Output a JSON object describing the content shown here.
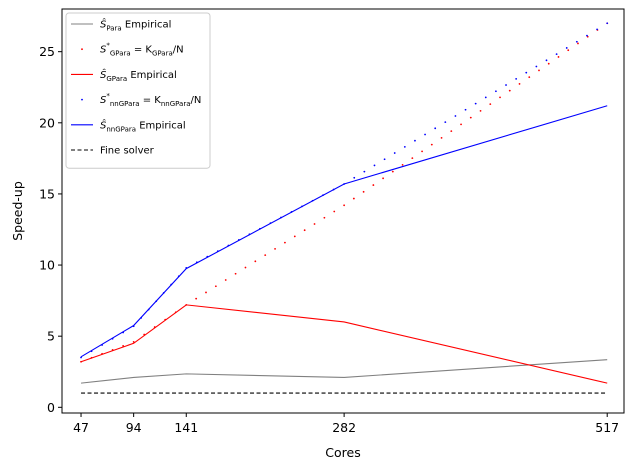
{
  "chart_data": {
    "type": "line",
    "title": "",
    "xlabel": "Cores",
    "ylabel": "Speed-up",
    "x_ticks": [
      47,
      94,
      141,
      282,
      517
    ],
    "y_ticks": [
      0,
      5,
      10,
      15,
      20,
      25
    ],
    "xlim": [
      30,
      532
    ],
    "ylim": [
      -0.4,
      28.0
    ],
    "grid": false,
    "legend_position": "top-left",
    "series": [
      {
        "name": "Ŝ_Para Empirical",
        "legend": {
          "base": "Ŝ",
          "sub": "Para",
          "rest": " Empirical"
        },
        "style": "solid",
        "color": "#808080",
        "x": [
          47,
          94,
          141,
          282,
          517
        ],
        "values": [
          1.7,
          2.1,
          2.35,
          2.1,
          3.35
        ]
      },
      {
        "name": "S*_GPara = K_GPara/N",
        "legend": {
          "base": "S",
          "sup": "*",
          "sub": "GPara",
          "rest": " = K",
          "sub2": "GPara",
          "rest2": "/N"
        },
        "style": "dotted",
        "color": "#ff0000",
        "x": [
          47,
          94,
          141,
          282,
          517
        ],
        "values": [
          3.2,
          4.6,
          7.2,
          14.2,
          27.0
        ]
      },
      {
        "name": "Ŝ_GPara Empirical",
        "legend": {
          "base": "Ŝ",
          "sub": "GPara",
          "rest": " Empirical"
        },
        "style": "solid",
        "color": "#ff0000",
        "x": [
          47,
          94,
          141,
          282,
          517
        ],
        "values": [
          3.2,
          4.5,
          7.2,
          6.0,
          1.7
        ]
      },
      {
        "name": "S*_nnGPara = K_nnGPara/N",
        "legend": {
          "base": "S",
          "sup": "*",
          "sub": "nnGPara",
          "rest": " = K",
          "sub2": "nnGPara",
          "rest2": "/N"
        },
        "style": "dotted",
        "color": "#0000ff",
        "x": [
          47,
          94,
          141,
          282,
          517
        ],
        "values": [
          3.5,
          5.7,
          9.8,
          15.7,
          27.0
        ]
      },
      {
        "name": "Ŝ_nnGPara Empirical",
        "legend": {
          "base": "Ŝ",
          "sub": "nnGPara",
          "rest": " Empirical"
        },
        "style": "solid",
        "color": "#0000ff",
        "x": [
          47,
          94,
          141,
          282,
          517
        ],
        "values": [
          3.55,
          5.75,
          9.75,
          15.7,
          21.2
        ]
      },
      {
        "name": "Fine solver",
        "legend": {
          "base": "Fine solver"
        },
        "style": "dashed",
        "color": "#000000",
        "x": [
          47,
          517
        ],
        "values": [
          1.0,
          1.0
        ]
      }
    ]
  }
}
